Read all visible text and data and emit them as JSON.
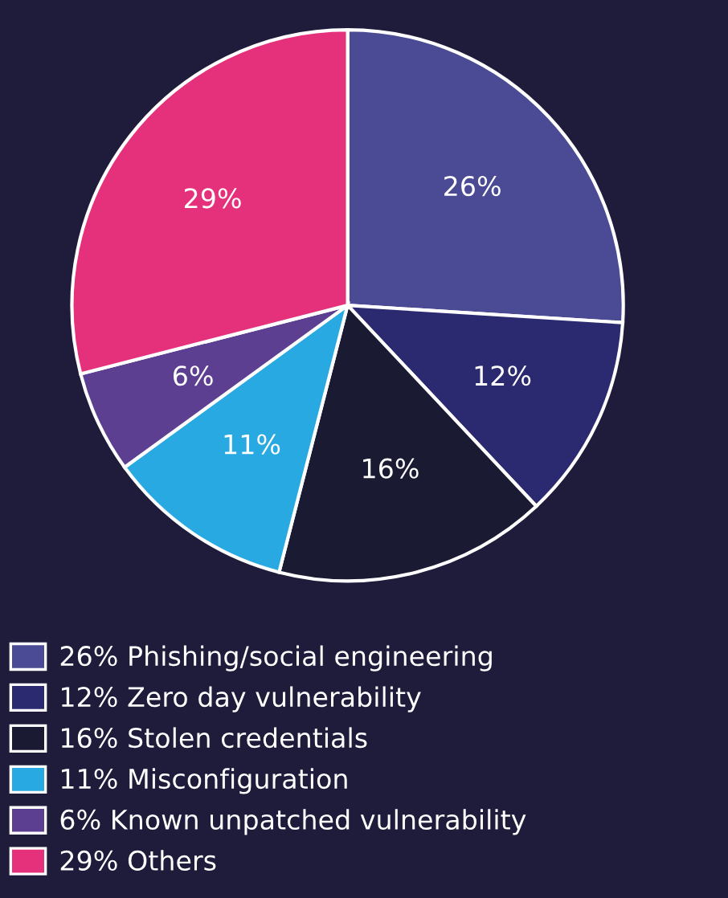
{
  "chart_data": {
    "type": "pie",
    "categories": [
      "Phishing/social engineering",
      "Zero day vulnerability",
      "Stolen credentials",
      "Misconfiguration",
      "Known unpatched vulnerability",
      "Others"
    ],
    "values": [
      26,
      12,
      16,
      11,
      6,
      29
    ],
    "value_labels": [
      "26%",
      "12%",
      "16%",
      "11%",
      "6%",
      "29%"
    ],
    "colors": [
      "#4b4a94",
      "#2b2a70",
      "#1b1a33",
      "#29a9e1",
      "#5d3f92",
      "#e5317b"
    ],
    "legend": "bottom"
  }
}
